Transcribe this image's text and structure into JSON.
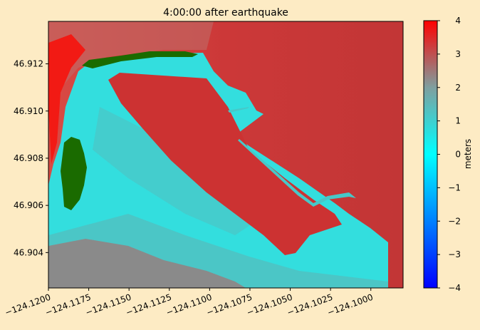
{
  "chart_data": {
    "type": "heatmap",
    "title": "4:00:00 after earthquake",
    "xlabel": "",
    "ylabel": "",
    "xlim": [
      -124.12,
      -124.098
    ],
    "ylim": [
      46.9025,
      46.9138
    ],
    "x_ticks": [
      -124.12,
      -124.1175,
      -124.115,
      -124.1125,
      -124.11,
      -124.1075,
      -124.105,
      -124.1025,
      -124.1
    ],
    "x_tick_labels": [
      "−124.1200",
      "−124.1175",
      "−124.1150",
      "−124.1125",
      "−124.1100",
      "−124.1075",
      "−124.1050",
      "−124.1025",
      "−124.1000"
    ],
    "y_ticks": [
      46.904,
      46.906,
      46.908,
      46.91,
      46.912
    ],
    "y_tick_labels": [
      "46.904",
      "46.906",
      "46.908",
      "46.910",
      "46.912"
    ],
    "colorbar": {
      "label": "meters",
      "range": [
        -4,
        4
      ],
      "ticks": [
        -4,
        -3,
        -2,
        -1,
        0,
        1,
        2,
        3,
        4
      ],
      "tick_labels": [
        "−4",
        "−3",
        "−2",
        "−1",
        "0",
        "1",
        "2",
        "3",
        "4"
      ],
      "colors": [
        "#0000ff",
        "#0080ff",
        "#00ffff",
        "#80a0a0",
        "#ff0000"
      ]
    },
    "regions": {
      "open_water_color": "#cc3333",
      "land_color": "#33dddd",
      "dry_land_color": "#1a6b00"
    }
  }
}
